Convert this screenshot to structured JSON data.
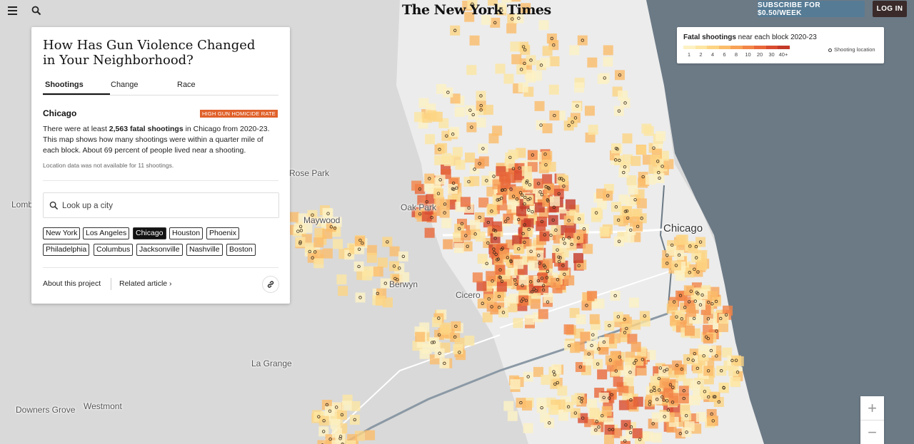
{
  "header": {
    "logo": "The New York Times",
    "subscribe_label": "SUBSCRIBE FOR $0.50/WEEK",
    "login_label": "LOG IN"
  },
  "panel": {
    "title": "How Has Gun Violence Changed in Your Neighborhood?",
    "tabs": [
      "Shootings",
      "Change",
      "Race"
    ],
    "active_tab": "Shootings",
    "city": "Chicago",
    "rate_badge": "HIGH GUN HOMICIDE RATE",
    "desc_prefix": "There were at least ",
    "desc_count": "2,563 fatal shootings",
    "desc_suffix": " in Chicago from 2020-23. This map shows how many shootings were within a quarter mile of each block. About 69 percent of people lived near a shooting.",
    "note": "Location data was not available for 11 shootings.",
    "search_placeholder": "Look up a city",
    "cities": [
      "New York",
      "Los Angeles",
      "Chicago",
      "Houston",
      "Phoenix",
      "Philadelphia",
      "Columbus",
      "Jacksonville",
      "Nashville",
      "Boston"
    ],
    "selected_city": "Chicago",
    "about_link": "About this project",
    "related_link": "Related article ›"
  },
  "legend": {
    "title_bold": "Fatal shootings",
    "title_rest": " near each block 2020-23",
    "ticks": [
      "1",
      "2",
      "4",
      "6",
      "8",
      "10",
      "20",
      "30",
      "40+"
    ],
    "colors": [
      "#fdf1c4",
      "#fde6a3",
      "#fcd483",
      "#fbbd6a",
      "#f7a257",
      "#f28547",
      "#e9683a",
      "#d94c2f",
      "#c43a28"
    ],
    "location_label": "Shooting location"
  },
  "map": {
    "labels": [
      "Rose Park",
      "Lombard",
      "Maywood",
      "Oak Park",
      "Berwyn",
      "Cicero",
      "Chicago",
      "La Grange",
      "Downers Grove",
      "Westmont"
    ],
    "land_color": "#d9d9d9",
    "city_color": "#efefef",
    "water_color": "#6c7a86"
  },
  "zoom": {
    "in": "+",
    "out": "−"
  }
}
